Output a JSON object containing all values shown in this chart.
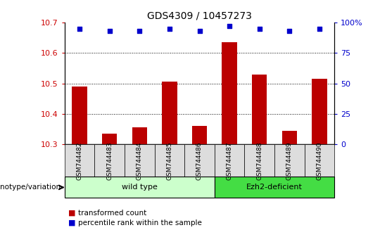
{
  "title": "GDS4309 / 10457273",
  "samples": [
    "GSM744482",
    "GSM744483",
    "GSM744484",
    "GSM744485",
    "GSM744486",
    "GSM744487",
    "GSM744488",
    "GSM744489",
    "GSM744490"
  ],
  "transformed_counts": [
    10.49,
    10.335,
    10.355,
    10.505,
    10.36,
    10.635,
    10.53,
    10.345,
    10.515
  ],
  "percentile_ranks": [
    95,
    93,
    93,
    95,
    93,
    97,
    95,
    93,
    95
  ],
  "ylim_left": [
    10.3,
    10.7
  ],
  "ylim_right": [
    0,
    100
  ],
  "right_ticks": [
    0,
    25,
    50,
    75,
    100
  ],
  "right_tick_labels": [
    "0",
    "25",
    "50",
    "75",
    "100%"
  ],
  "left_ticks": [
    10.3,
    10.4,
    10.5,
    10.6,
    10.7
  ],
  "bar_color": "#bb0000",
  "dot_color": "#0000cc",
  "bar_width": 0.5,
  "group1_label": "wild type",
  "group2_label": "Ezh2-deficient",
  "group1_color": "#ccffcc",
  "group2_color": "#44dd44",
  "genotype_label": "genotype/variation",
  "legend_bar_label": "transformed count",
  "legend_dot_label": "percentile rank within the sample",
  "left_tick_color": "#cc0000",
  "right_tick_color": "#0000cc",
  "xticklabel_bg": "#dddddd",
  "grid_dotted_at": [
    10.4,
    10.5,
    10.6
  ]
}
